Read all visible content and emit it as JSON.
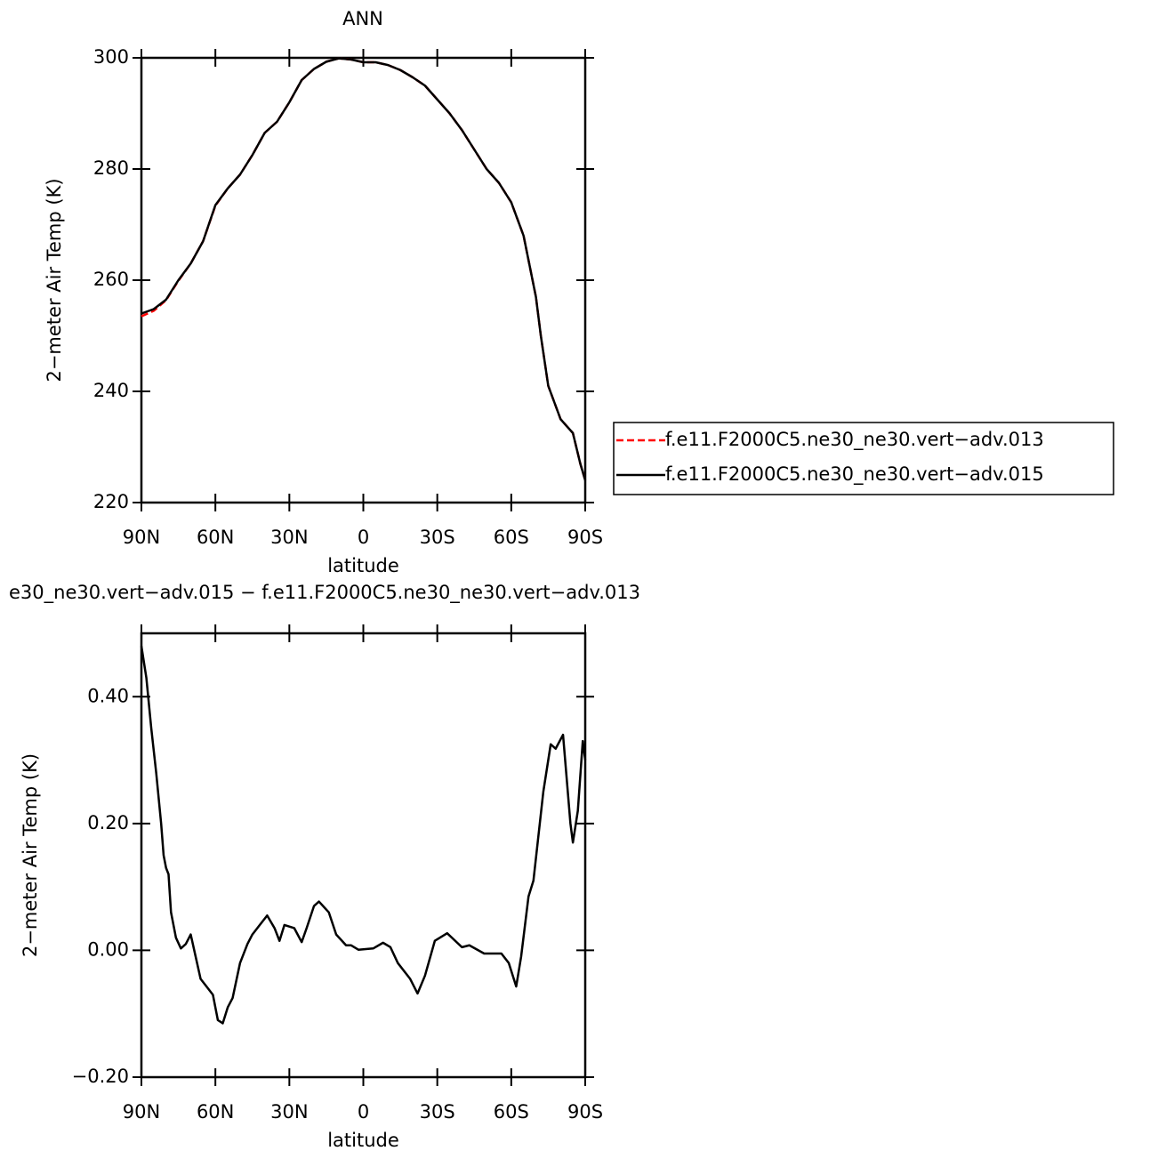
{
  "chart_data": [
    {
      "type": "line",
      "title": "ANN",
      "xlabel": "latitude",
      "ylabel": "2−meter Air Temp (K)",
      "x": [
        90,
        85,
        80,
        75,
        70,
        65,
        60,
        55,
        50,
        45,
        40,
        35,
        30,
        25,
        20,
        15,
        10,
        5,
        0,
        -5,
        -10,
        -15,
        -20,
        -25,
        -30,
        -35,
        -40,
        -45,
        -50,
        -55,
        -60,
        -65,
        -70,
        -72,
        -75,
        -80,
        -85,
        -88,
        -90
      ],
      "series": [
        {
          "name": "f.e11.F2000C5.ne30_ne30.vert−adv.013",
          "color": "#ff0000",
          "dashed": true,
          "values": [
            253.5,
            254.5,
            256.4,
            259.9,
            263,
            267,
            273.4,
            276.5,
            279,
            282.5,
            286.5,
            288.5,
            292,
            296,
            298,
            299.3,
            299.9,
            299.7,
            299.2,
            299.2,
            298.7,
            297.8,
            296.5,
            295,
            292.5,
            290,
            287,
            283.5,
            280,
            277.5,
            274,
            268,
            257,
            250,
            241,
            235,
            232.5,
            227,
            224
          ]
        },
        {
          "name": "f.e11.F2000C5.ne30_ne30.vert−adv.015",
          "color": "#000000",
          "dashed": false,
          "values": [
            254,
            254.8,
            256.5,
            260,
            263,
            267,
            273.5,
            276.5,
            279,
            282.5,
            286.5,
            288.5,
            292,
            296,
            298,
            299.3,
            299.9,
            299.7,
            299.2,
            299.2,
            298.7,
            297.8,
            296.5,
            295,
            292.5,
            290,
            287,
            283.5,
            280,
            277.5,
            274,
            268,
            257,
            250,
            241,
            235,
            232.5,
            227,
            224
          ]
        }
      ],
      "xlim": [
        90,
        -90
      ],
      "xticks": [
        {
          "value": 90,
          "label": "90N"
        },
        {
          "value": 60,
          "label": "60N"
        },
        {
          "value": 30,
          "label": "30N"
        },
        0,
        {
          "value": -30,
          "label": "30S"
        },
        {
          "value": -60,
          "label": "60S"
        },
        {
          "value": -90,
          "label": "90S"
        }
      ],
      "ylim": [
        220,
        300
      ],
      "yticks": [
        220,
        240,
        260,
        280,
        300
      ]
    },
    {
      "type": "line",
      "title": "e30_ne30.vert−adv.015 − f.e11.F2000C5.ne30_ne30.vert−adv.013",
      "xlabel": "latitude",
      "ylabel": "2−meter Air Temp (K)",
      "x": [
        90,
        88,
        86,
        84,
        82,
        81,
        80,
        79,
        78,
        76,
        74,
        72,
        70,
        68,
        66,
        64,
        61,
        59,
        57,
        55,
        53,
        50,
        47,
        45,
        42,
        39,
        36,
        34,
        32,
        28,
        25,
        23,
        20,
        18,
        14,
        11,
        7,
        5,
        2,
        -1,
        -4,
        -8,
        -11,
        -14,
        -19,
        -22,
        -25,
        -29,
        -34,
        -40,
        -43,
        -49,
        -56,
        -59,
        -62,
        -64,
        -67,
        -69,
        -73,
        -76,
        -78,
        -81,
        -84,
        -85,
        -87,
        -89,
        -90
      ],
      "series": [
        {
          "name": null,
          "color": "#000000",
          "dashed": false,
          "values": [
            0.48,
            0.43,
            0.35,
            0.28,
            0.2,
            0.15,
            0.13,
            0.12,
            0.06,
            0.02,
            0.003,
            0.01,
            0.025,
            -0.01,
            -0.045,
            -0.055,
            -0.07,
            -0.11,
            -0.115,
            -0.09,
            -0.075,
            -0.02,
            0.01,
            0.025,
            0.04,
            0.055,
            0.035,
            0.015,
            0.04,
            0.035,
            0.013,
            0.035,
            0.07,
            0.077,
            0.06,
            0.025,
            0.008,
            0.008,
            0.001,
            0.002,
            0.003,
            0.012,
            0.005,
            -0.02,
            -0.045,
            -0.068,
            -0.04,
            0.015,
            0.027,
            0.005,
            0.008,
            -0.005,
            -0.005,
            -0.02,
            -0.057,
            -0.01,
            0.085,
            0.11,
            0.25,
            0.325,
            0.318,
            0.34,
            0.2,
            0.17,
            0.22,
            0.33,
            0.3
          ]
        }
      ],
      "xlim": [
        90,
        -90
      ],
      "xticks": [
        {
          "value": 90,
          "label": "90N"
        },
        {
          "value": 60,
          "label": "60N"
        },
        {
          "value": 30,
          "label": "30N"
        },
        0,
        {
          "value": -30,
          "label": "30S"
        },
        {
          "value": -60,
          "label": "60S"
        },
        {
          "value": -90,
          "label": "90S"
        }
      ],
      "ylim": [
        -0.2,
        0.5
      ],
      "yticks": [
        {
          "value": -0.2,
          "label": "−0.20"
        },
        {
          "value": 0,
          "label": "0.00"
        },
        {
          "value": 0.2,
          "label": "0.20"
        },
        {
          "value": 0.4,
          "label": "0.40"
        }
      ]
    }
  ]
}
